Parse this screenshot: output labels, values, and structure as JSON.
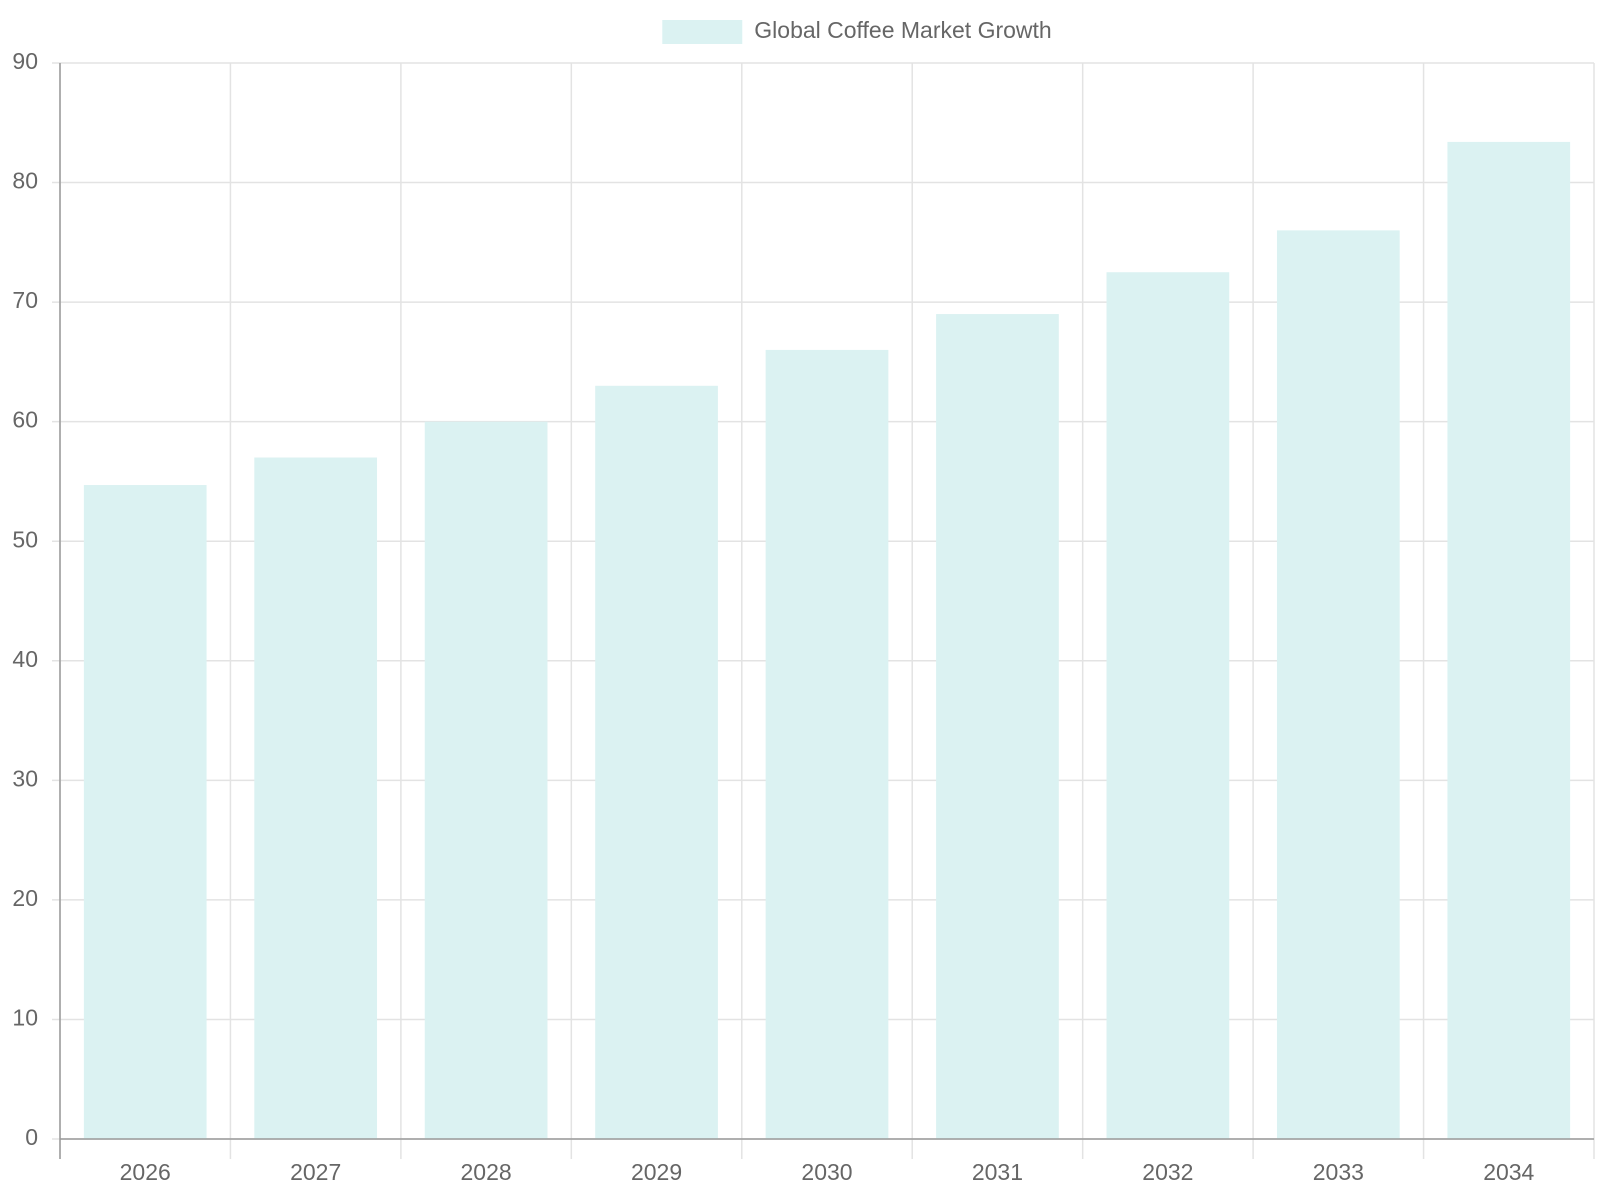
{
  "chart_data": {
    "type": "bar",
    "categories": [
      "2026",
      "2027",
      "2028",
      "2029",
      "2030",
      "2031",
      "2032",
      "2033",
      "2034"
    ],
    "series": [
      {
        "name": "Global Coffee Market Growth",
        "color": "#dbf2f2",
        "values": [
          54.7,
          57,
          60,
          63,
          66,
          69,
          72.5,
          76,
          83.4
        ]
      }
    ],
    "ylim": [
      0,
      90
    ],
    "yticks": [
      0,
      10,
      20,
      30,
      40,
      50,
      60,
      70,
      80,
      90
    ],
    "grid": true,
    "legend": "top"
  }
}
